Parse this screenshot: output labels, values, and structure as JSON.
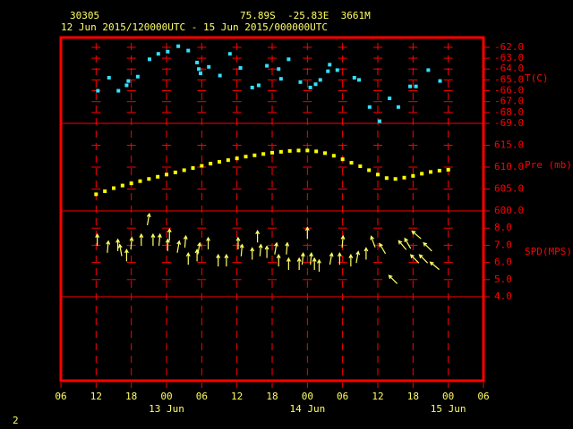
{
  "chart_data": {
    "type": "multi-panel",
    "station": "30305",
    "location": "75.89S  -25.83E  3661M",
    "title": "12 Jun 2015/120000UTC - 15 Jun 2015/000000UTC",
    "page_number": "2",
    "xlim": [
      6,
      78
    ],
    "xticks": [
      {
        "value": 6,
        "label": "06"
      },
      {
        "value": 12,
        "label": "12"
      },
      {
        "value": 18,
        "label": "18"
      },
      {
        "value": 24,
        "label": "00"
      },
      {
        "value": 30,
        "label": "06"
      },
      {
        "value": 36,
        "label": "12"
      },
      {
        "value": 42,
        "label": "18"
      },
      {
        "value": 48,
        "label": "00"
      },
      {
        "value": 54,
        "label": "06"
      },
      {
        "value": 60,
        "label": "12"
      },
      {
        "value": 66,
        "label": "18"
      },
      {
        "value": 72,
        "label": "00"
      },
      {
        "value": 78,
        "label": "06"
      }
    ],
    "day_labels": [
      {
        "value": 24,
        "label": "13 Jun"
      },
      {
        "value": 48,
        "label": "14 Jun"
      },
      {
        "value": 72,
        "label": "15 Jun"
      }
    ],
    "frame_color": "#ff0000",
    "panels": [
      {
        "type": "scatter",
        "marker": "square",
        "label": "T(C)",
        "color": "#33e0ff",
        "ylim": [
          -69,
          -61.1
        ],
        "yticks": [
          {
            "value": -62,
            "label": "-62.0"
          },
          {
            "value": -63,
            "label": "-63.0"
          },
          {
            "value": -64,
            "label": "-64.0"
          },
          {
            "value": -65,
            "label": "-65.0"
          },
          {
            "value": -66,
            "label": "-66.0"
          },
          {
            "value": -67,
            "label": "-67.0"
          },
          {
            "value": -68,
            "label": "-68.0"
          },
          {
            "value": -69,
            "label": "-69.0"
          }
        ],
        "x": [
          12.3,
          14.2,
          15.8,
          17.2,
          17.5,
          19.1,
          21.1,
          22.6,
          24.2,
          26,
          27.7,
          29.2,
          29.5,
          29.8,
          31.2,
          33.1,
          34.8,
          36.6,
          38.6,
          39.7,
          41.1,
          43.1,
          43.5,
          44.8,
          46.8,
          48.5,
          49.4,
          50.2,
          51.5,
          51.8,
          53.1,
          56,
          56.8,
          58.6,
          60.3,
          62,
          63.5,
          65.5,
          66.5,
          68.6,
          70.6
        ],
        "values": [
          -66.0,
          -64.8,
          -66.0,
          -65.5,
          -65.1,
          -64.7,
          -63.1,
          -62.6,
          -62.4,
          -61.9,
          -62.3,
          -63.4,
          -64.0,
          -64.4,
          -63.8,
          -64.6,
          -62.6,
          -63.9,
          -65.7,
          -65.5,
          -63.7,
          -64.0,
          -64.9,
          -63.1,
          -65.2,
          -65.7,
          -65.4,
          -65.0,
          -64.2,
          -63.6,
          -64.1,
          -64.8,
          -65.0,
          -67.5,
          -68.8,
          -66.7,
          -67.5,
          -65.6,
          -65.6,
          -64.1,
          -65.1
        ]
      },
      {
        "type": "scatter",
        "marker": "square",
        "label": "Pre (mb)",
        "color": "#ffff00",
        "ylim": [
          600,
          620
        ],
        "yticks": [
          {
            "value": 615,
            "label": "615.0"
          },
          {
            "value": 610,
            "label": "610.0"
          },
          {
            "value": 605,
            "label": "605.0"
          },
          {
            "value": 600,
            "label": "600.0"
          }
        ],
        "x": [
          12,
          13.5,
          15,
          16.5,
          18,
          19.5,
          21,
          22.5,
          24,
          25.5,
          27,
          28.5,
          30,
          31.5,
          33,
          34.5,
          36,
          37.5,
          39,
          40.5,
          42,
          43.5,
          45,
          46.5,
          48,
          49.5,
          51,
          52.5,
          54,
          55.5,
          57,
          58.5,
          60,
          61.5,
          63,
          64.5,
          66,
          67.5,
          69,
          70.5,
          72
        ],
        "values": [
          603.8,
          604.5,
          605.2,
          605.8,
          606.3,
          606.8,
          607.3,
          607.8,
          608.3,
          608.8,
          609.3,
          609.8,
          610.3,
          610.8,
          611.2,
          611.6,
          612.0,
          612.4,
          612.7,
          613.0,
          613.3,
          613.5,
          613.7,
          613.8,
          613.8,
          613.6,
          613.2,
          612.6,
          611.8,
          611.0,
          610.2,
          609.3,
          608.3,
          607.5,
          607.3,
          607.6,
          608.0,
          608.5,
          608.9,
          609.2,
          609.4
        ]
      },
      {
        "type": "vector",
        "label": "SPD(MPS)",
        "color": "#ffff66",
        "ylim": [
          4,
          9
        ],
        "yticks": [
          {
            "value": 8,
            "label": "8.0"
          },
          {
            "value": 7,
            "label": "7.0"
          },
          {
            "value": 6,
            "label": "6.0"
          },
          {
            "value": 5,
            "label": "5.0"
          },
          {
            "value": 4,
            "label": "4.0"
          }
        ],
        "x": [
          12.2,
          14,
          15.7,
          16.2,
          17.2,
          18,
          19.7,
          20.9,
          21.7,
          22.8,
          24.2,
          24.5,
          26,
          27.2,
          27.7,
          29.2,
          29.5,
          31.1,
          32.8,
          34.2,
          36.2,
          36.8,
          38.6,
          39.5,
          40,
          41.1,
          42.6,
          43.1,
          44.5,
          44.8,
          46.6,
          47.2,
          48,
          48.6,
          49.2,
          50,
          52,
          53.5,
          54,
          55.4,
          56.5,
          58,
          59.2,
          60.8,
          62.6,
          64.2,
          65.1,
          66.3,
          66.6,
          67.8,
          68.5,
          69.7
        ],
        "values": [
          7.3,
          6.9,
          7.0,
          6.7,
          6.4,
          7.1,
          7.3,
          8.5,
          7.3,
          7.3,
          7.0,
          7.6,
          6.9,
          7.2,
          6.2,
          6.4,
          6.8,
          7.1,
          6.1,
          6.1,
          7.1,
          6.7,
          6.5,
          7.5,
          6.7,
          6.6,
          6.8,
          6.1,
          6.8,
          5.9,
          5.9,
          6.2,
          7.7,
          6.2,
          5.9,
          5.8,
          6.2,
          6.2,
          7.2,
          6.1,
          6.3,
          6.5,
          7.2,
          6.8,
          5.0,
          7.0,
          7.1,
          6.2,
          7.6,
          6.2,
          6.9,
          5.8
        ],
        "directions": [
          0,
          5,
          0,
          -10,
          0,
          5,
          0,
          10,
          0,
          5,
          0,
          0,
          10,
          5,
          0,
          0,
          10,
          0,
          0,
          0,
          0,
          5,
          0,
          0,
          5,
          0,
          10,
          0,
          5,
          0,
          0,
          5,
          0,
          5,
          0,
          0,
          10,
          0,
          5,
          0,
          10,
          0,
          -20,
          -30,
          -45,
          -40,
          -30,
          -45,
          -50,
          -45,
          -45,
          -50
        ]
      }
    ]
  }
}
